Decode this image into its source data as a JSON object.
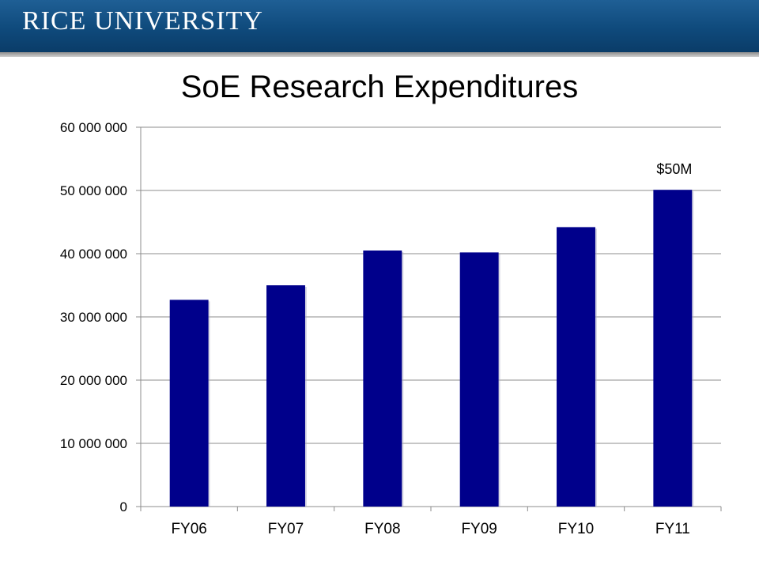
{
  "header": {
    "logo_text": "RICE UNIVERSITY"
  },
  "colors": {
    "banner": "#0f4a7c",
    "bar": "#00008b",
    "grid": "#8c8c8c"
  },
  "chart_data": {
    "type": "bar",
    "title": "SoE Research Expenditures",
    "categories": [
      "FY06",
      "FY07",
      "FY08",
      "FY09",
      "FY10",
      "FY11"
    ],
    "values": [
      32700000,
      35000000,
      40500000,
      40200000,
      44200000,
      50100000
    ],
    "ylim": [
      0,
      60000000
    ],
    "yticks": [
      0,
      10000000,
      20000000,
      30000000,
      40000000,
      50000000,
      60000000
    ],
    "ytick_labels": [
      "0",
      "10 000 000",
      "20 000 000",
      "30 000 000",
      "40 000 000",
      "50 000 000",
      "60 000 000"
    ],
    "grid": true,
    "legend": "none",
    "annotations": [
      {
        "category": "FY11",
        "text": "$50M"
      }
    ]
  }
}
